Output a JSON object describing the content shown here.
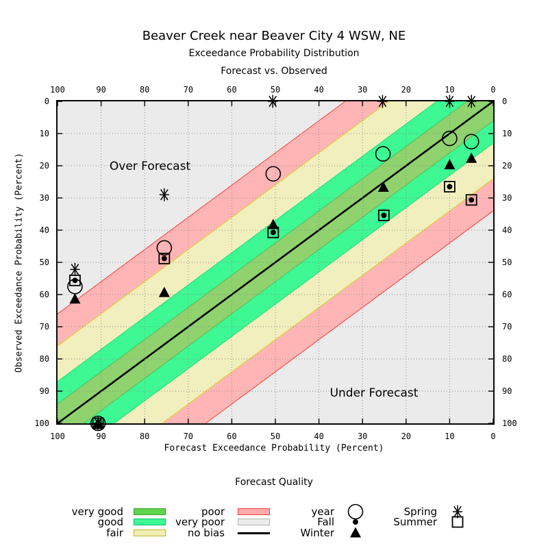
{
  "title": "Beaver Creek near Beaver City 4 WSW, NE",
  "subtitle1": "Exceedance Probability Distribution",
  "subtitle2": "Forecast vs. Observed",
  "annotations": {
    "over": "Over Forecast",
    "under": "Under Forecast"
  },
  "axes": {
    "x_label": "Forecast Exceedance Probability (Percent)",
    "y_label": "Observed Exceedance Probability (Percent)",
    "x_ticks": [
      100,
      90,
      80,
      70,
      60,
      50,
      40,
      30,
      20,
      10,
      0
    ],
    "y_ticks": [
      0,
      10,
      20,
      30,
      40,
      50,
      60,
      70,
      80,
      90,
      100
    ]
  },
  "chart_data": {
    "type": "scatter",
    "title": "Beaver Creek near Beaver City 4 WSW, NE",
    "xlabel": "Forecast Exceedance Probability (Percent)",
    "ylabel": "Observed Exceedance Probability (Percent)",
    "xlim": [
      100,
      0
    ],
    "ylim": [
      0,
      100
    ],
    "x_reversed": true,
    "y_inverted": true,
    "grid": true,
    "background_color": "#ebebeb",
    "no_bias_line": {
      "from": [
        100,
        100
      ],
      "to": [
        0,
        0
      ],
      "color": "#000000"
    },
    "bands": [
      {
        "name": "poor",
        "half_width": 34,
        "color": "#ffb5b5",
        "edge": "#fb3b3b"
      },
      {
        "name": "fair",
        "half_width": 24,
        "color": "#f1efbd",
        "edge": "#d9d21f"
      },
      {
        "name": "good",
        "half_width": 13,
        "color": "#3df893",
        "edge": "#21dd7d"
      },
      {
        "name": "very good",
        "half_width": 6,
        "color": "#8fd26e",
        "edge": "#5cb85c"
      },
      {
        "name": "very poor",
        "half_width": 100,
        "color": "#ebebeb",
        "edge": "#bbbbbb"
      }
    ],
    "series": [
      {
        "name": "year",
        "marker": "circle",
        "points": [
          [
            96,
            57.5
          ],
          [
            75.5,
            45.5
          ],
          [
            50.5,
            22.5
          ],
          [
            25.3,
            16.3
          ],
          [
            10,
            11.5
          ],
          [
            5,
            12.5
          ],
          [
            90.7,
            100
          ]
        ]
      },
      {
        "name": "Fall",
        "marker": "dot",
        "points": [
          [
            96,
            55.6
          ],
          [
            75.5,
            48.8
          ],
          [
            50.5,
            40.7
          ],
          [
            25.1,
            35.4
          ],
          [
            10,
            26.5
          ],
          [
            5,
            30.6
          ],
          [
            90.7,
            100
          ]
        ]
      },
      {
        "name": "Winter",
        "marker": "triangle",
        "points": [
          [
            96,
            61.4
          ],
          [
            75.5,
            59.4
          ],
          [
            50.5,
            38.3
          ],
          [
            25.2,
            26.7
          ],
          [
            10,
            19.7
          ],
          [
            5,
            17.7
          ],
          [
            90.7,
            100
          ]
        ]
      },
      {
        "name": "Spring",
        "marker": "asterisk",
        "points": [
          [
            96,
            52.2
          ],
          [
            75.5,
            29
          ],
          [
            50.6,
            0
          ],
          [
            25.4,
            0
          ],
          [
            10,
            0
          ],
          [
            5,
            0
          ],
          [
            90.7,
            100
          ]
        ]
      },
      {
        "name": "Summer",
        "marker": "square",
        "points": [
          [
            96,
            55.6
          ],
          [
            75.5,
            48.8
          ],
          [
            50.5,
            40.7
          ],
          [
            25.1,
            35.4
          ],
          [
            10,
            26.5
          ],
          [
            5,
            30.6
          ],
          [
            90.7,
            100
          ]
        ]
      }
    ]
  },
  "legend": {
    "title": "Forecast Quality",
    "quality_items": [
      {
        "label": "very good",
        "color": "#61d44e",
        "border": "#2f9e2f",
        "type": "swatch"
      },
      {
        "label": "good",
        "color": "#3df893",
        "border": "#0fbf6f",
        "type": "swatch"
      },
      {
        "label": "fair",
        "color": "#f0eeb2",
        "border": "#bcb52a",
        "type": "swatch"
      },
      {
        "label": "poor",
        "color": "#ffabab",
        "border": "#f03c3c",
        "type": "swatch"
      },
      {
        "label": "very poor",
        "color": "#ececec",
        "border": "#b0b0b0",
        "type": "swatch"
      },
      {
        "label": "no bias",
        "color": "#000000",
        "border": "#000000",
        "type": "line"
      }
    ],
    "marker_items": [
      {
        "label": "year",
        "marker": "circle"
      },
      {
        "label": "Fall",
        "marker": "dot"
      },
      {
        "label": "Winter",
        "marker": "triangle"
      },
      {
        "label": "Spring",
        "marker": "asterisk"
      },
      {
        "label": "Summer",
        "marker": "square"
      }
    ]
  }
}
